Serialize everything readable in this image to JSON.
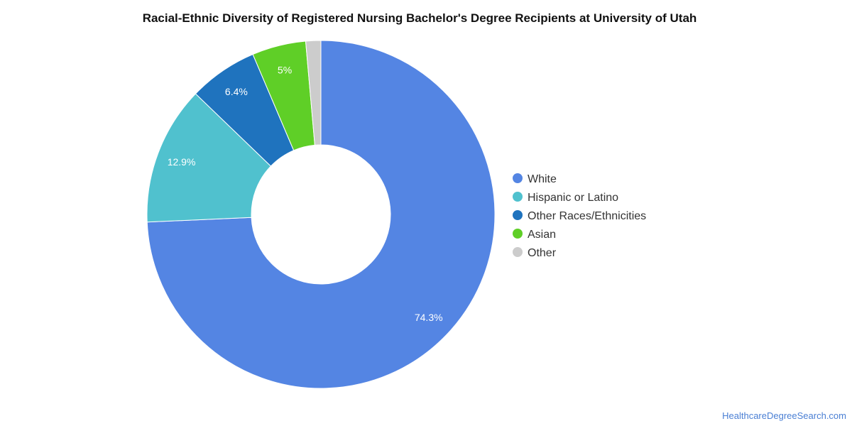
{
  "chart_data": {
    "type": "pie",
    "title": "Racial-Ethnic Diversity of Registered Nursing Bachelor's Degree Recipients at University of Utah",
    "legend_position": "right",
    "slices": [
      {
        "name": "White",
        "value": 74.3,
        "label": "74.3%",
        "color": "#5485e3"
      },
      {
        "name": "Hispanic or Latino",
        "value": 12.9,
        "label": "12.9%",
        "color": "#50c1ce"
      },
      {
        "name": "Other Races/Ethnicities",
        "value": 6.4,
        "label": "6.4%",
        "color": "#1f73be"
      },
      {
        "name": "Asian",
        "value": 5.0,
        "label": "5%",
        "color": "#5fcf27"
      },
      {
        "name": "Other",
        "value": 1.4,
        "label": "",
        "color": "#cccccc"
      }
    ]
  },
  "watermark": "HealthcareDegreeSearch.com"
}
